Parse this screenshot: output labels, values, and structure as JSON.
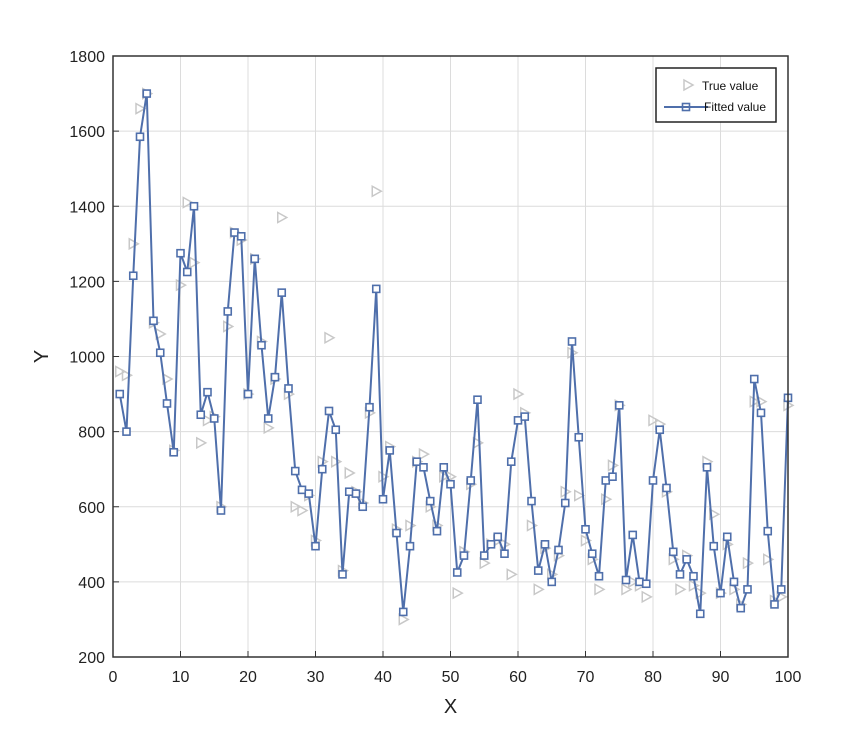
{
  "chart_data": {
    "type": "line",
    "title": "",
    "xlabel": "X",
    "ylabel": "Y",
    "xlim": [
      0,
      100
    ],
    "ylim": [
      200,
      1800
    ],
    "xticks": [
      0,
      10,
      20,
      30,
      40,
      50,
      60,
      70,
      80,
      90,
      100
    ],
    "yticks": [
      200,
      400,
      600,
      800,
      1000,
      1200,
      1400,
      1600,
      1800
    ],
    "grid": true,
    "legend_position": "top-right",
    "x": [
      1,
      2,
      3,
      4,
      5,
      6,
      7,
      8,
      9,
      10,
      11,
      12,
      13,
      14,
      15,
      16,
      17,
      18,
      19,
      20,
      21,
      22,
      23,
      24,
      25,
      26,
      27,
      28,
      29,
      30,
      31,
      32,
      33,
      34,
      35,
      36,
      37,
      38,
      39,
      40,
      41,
      42,
      43,
      44,
      45,
      46,
      47,
      48,
      49,
      50,
      51,
      52,
      53,
      54,
      55,
      56,
      57,
      58,
      59,
      60,
      61,
      62,
      63,
      64,
      65,
      66,
      67,
      68,
      69,
      70,
      71,
      72,
      73,
      74,
      75,
      76,
      77,
      78,
      79,
      80,
      81,
      82,
      83,
      84,
      85,
      86,
      87,
      88,
      89,
      90,
      91,
      92,
      93,
      94,
      95,
      96,
      97,
      98,
      99,
      100
    ],
    "series": [
      {
        "name": "True value",
        "marker": "triangle-right",
        "color": "#c8c8c8",
        "values": [
          960,
          950,
          1300,
          1660,
          1700,
          1090,
          1060,
          940,
          750,
          1190,
          1410,
          1250,
          770,
          830,
          840,
          600,
          1080,
          1330,
          1310,
          900,
          1260,
          1040,
          810,
          940,
          1370,
          900,
          600,
          590,
          630,
          510,
          720,
          1050,
          720,
          430,
          690,
          640,
          610,
          850,
          1440,
          680,
          760,
          540,
          300,
          550,
          720,
          740,
          600,
          550,
          680,
          680,
          370,
          480,
          660,
          770,
          450,
          500,
          510,
          500,
          420,
          900,
          850,
          550,
          380,
          490,
          420,
          470,
          640,
          1010,
          630,
          510,
          460,
          380,
          620,
          710,
          870,
          380,
          400,
          390,
          360,
          830,
          820,
          640,
          460,
          380,
          470,
          390,
          370,
          720,
          580,
          370,
          500,
          380,
          340,
          450,
          880,
          880,
          460,
          350,
          360,
          870
        ],
        "show_line": false
      },
      {
        "name": "Fitted value",
        "marker": "square",
        "color": "#4f6fab",
        "values": [
          900,
          800,
          1215,
          1585,
          1700,
          1095,
          1010,
          875,
          745,
          1275,
          1225,
          1400,
          845,
          905,
          835,
          590,
          1120,
          1330,
          1320,
          900,
          1260,
          1030,
          835,
          945,
          1170,
          915,
          695,
          645,
          635,
          495,
          700,
          855,
          805,
          420,
          640,
          635,
          600,
          865,
          1180,
          620,
          750,
          530,
          320,
          495,
          720,
          705,
          615,
          535,
          705,
          660,
          425,
          470,
          670,
          885,
          470,
          500,
          520,
          475,
          720,
          830,
          840,
          615,
          430,
          500,
          400,
          485,
          610,
          1040,
          785,
          540,
          475,
          415,
          670,
          680,
          870,
          405,
          525,
          400,
          395,
          670,
          805,
          650,
          480,
          420,
          460,
          415,
          315,
          705,
          495,
          370,
          520,
          400,
          330,
          380,
          940,
          850,
          535,
          340,
          380,
          890
        ],
        "show_line": true
      }
    ]
  }
}
